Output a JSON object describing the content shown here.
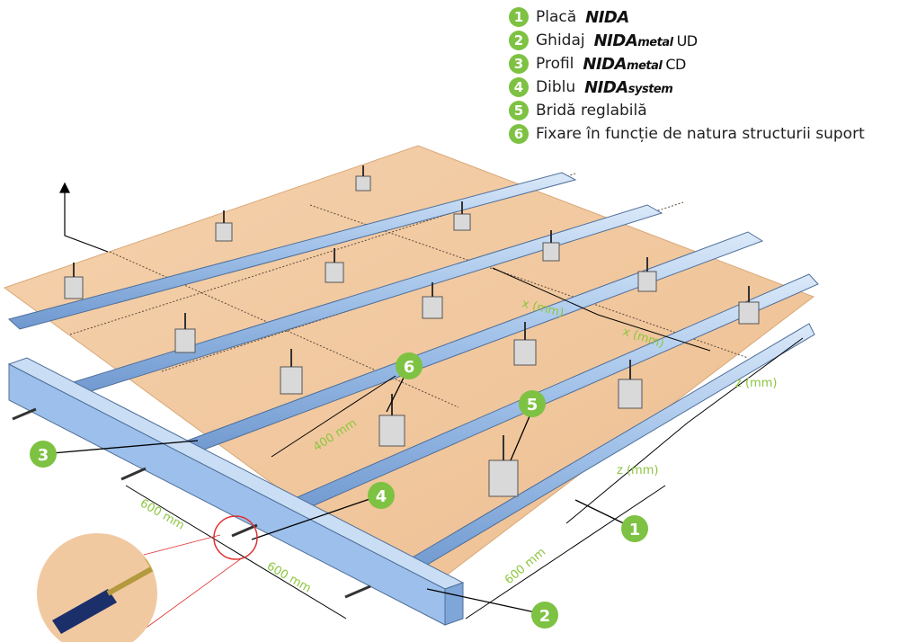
{
  "legend": [
    {
      "num": "1",
      "label": "Placă",
      "brand": "NIDA",
      "brand_sub": "",
      "suffix": ""
    },
    {
      "num": "2",
      "label": "Ghidaj",
      "brand": "NIDA",
      "brand_sub": "metal",
      "suffix": "UD"
    },
    {
      "num": "3",
      "label": "Profil",
      "brand": "NIDA",
      "brand_sub": "metal",
      "suffix": "CD"
    },
    {
      "num": "4",
      "label": "Diblu",
      "brand": "NIDA",
      "brand_sub": "system",
      "suffix": ""
    },
    {
      "num": "5",
      "label": "Bridă reglabilă",
      "brand": "",
      "brand_sub": "",
      "suffix": ""
    },
    {
      "num": "6",
      "label": "Fixare în funcție de natura structurii suport",
      "brand": "",
      "brand_sub": "",
      "suffix": ""
    }
  ],
  "dimensions": {
    "x1": "x (mm)",
    "x2": "x (mm)",
    "z1": "z (mm)",
    "z2": "z (mm)",
    "d400": "400 mm",
    "d600a": "600 mm",
    "d600b": "600 mm",
    "d600c": "600 mm"
  },
  "callouts": {
    "c1": "1",
    "c2": "2",
    "c3": "3",
    "c4": "4",
    "c5": "5",
    "c6": "6"
  },
  "colors": {
    "board": "#f1c9a1",
    "profile": "#a9c8ec",
    "guide": "#8fb5e6",
    "accent": "#7dc242",
    "label": "#8cc63f"
  }
}
